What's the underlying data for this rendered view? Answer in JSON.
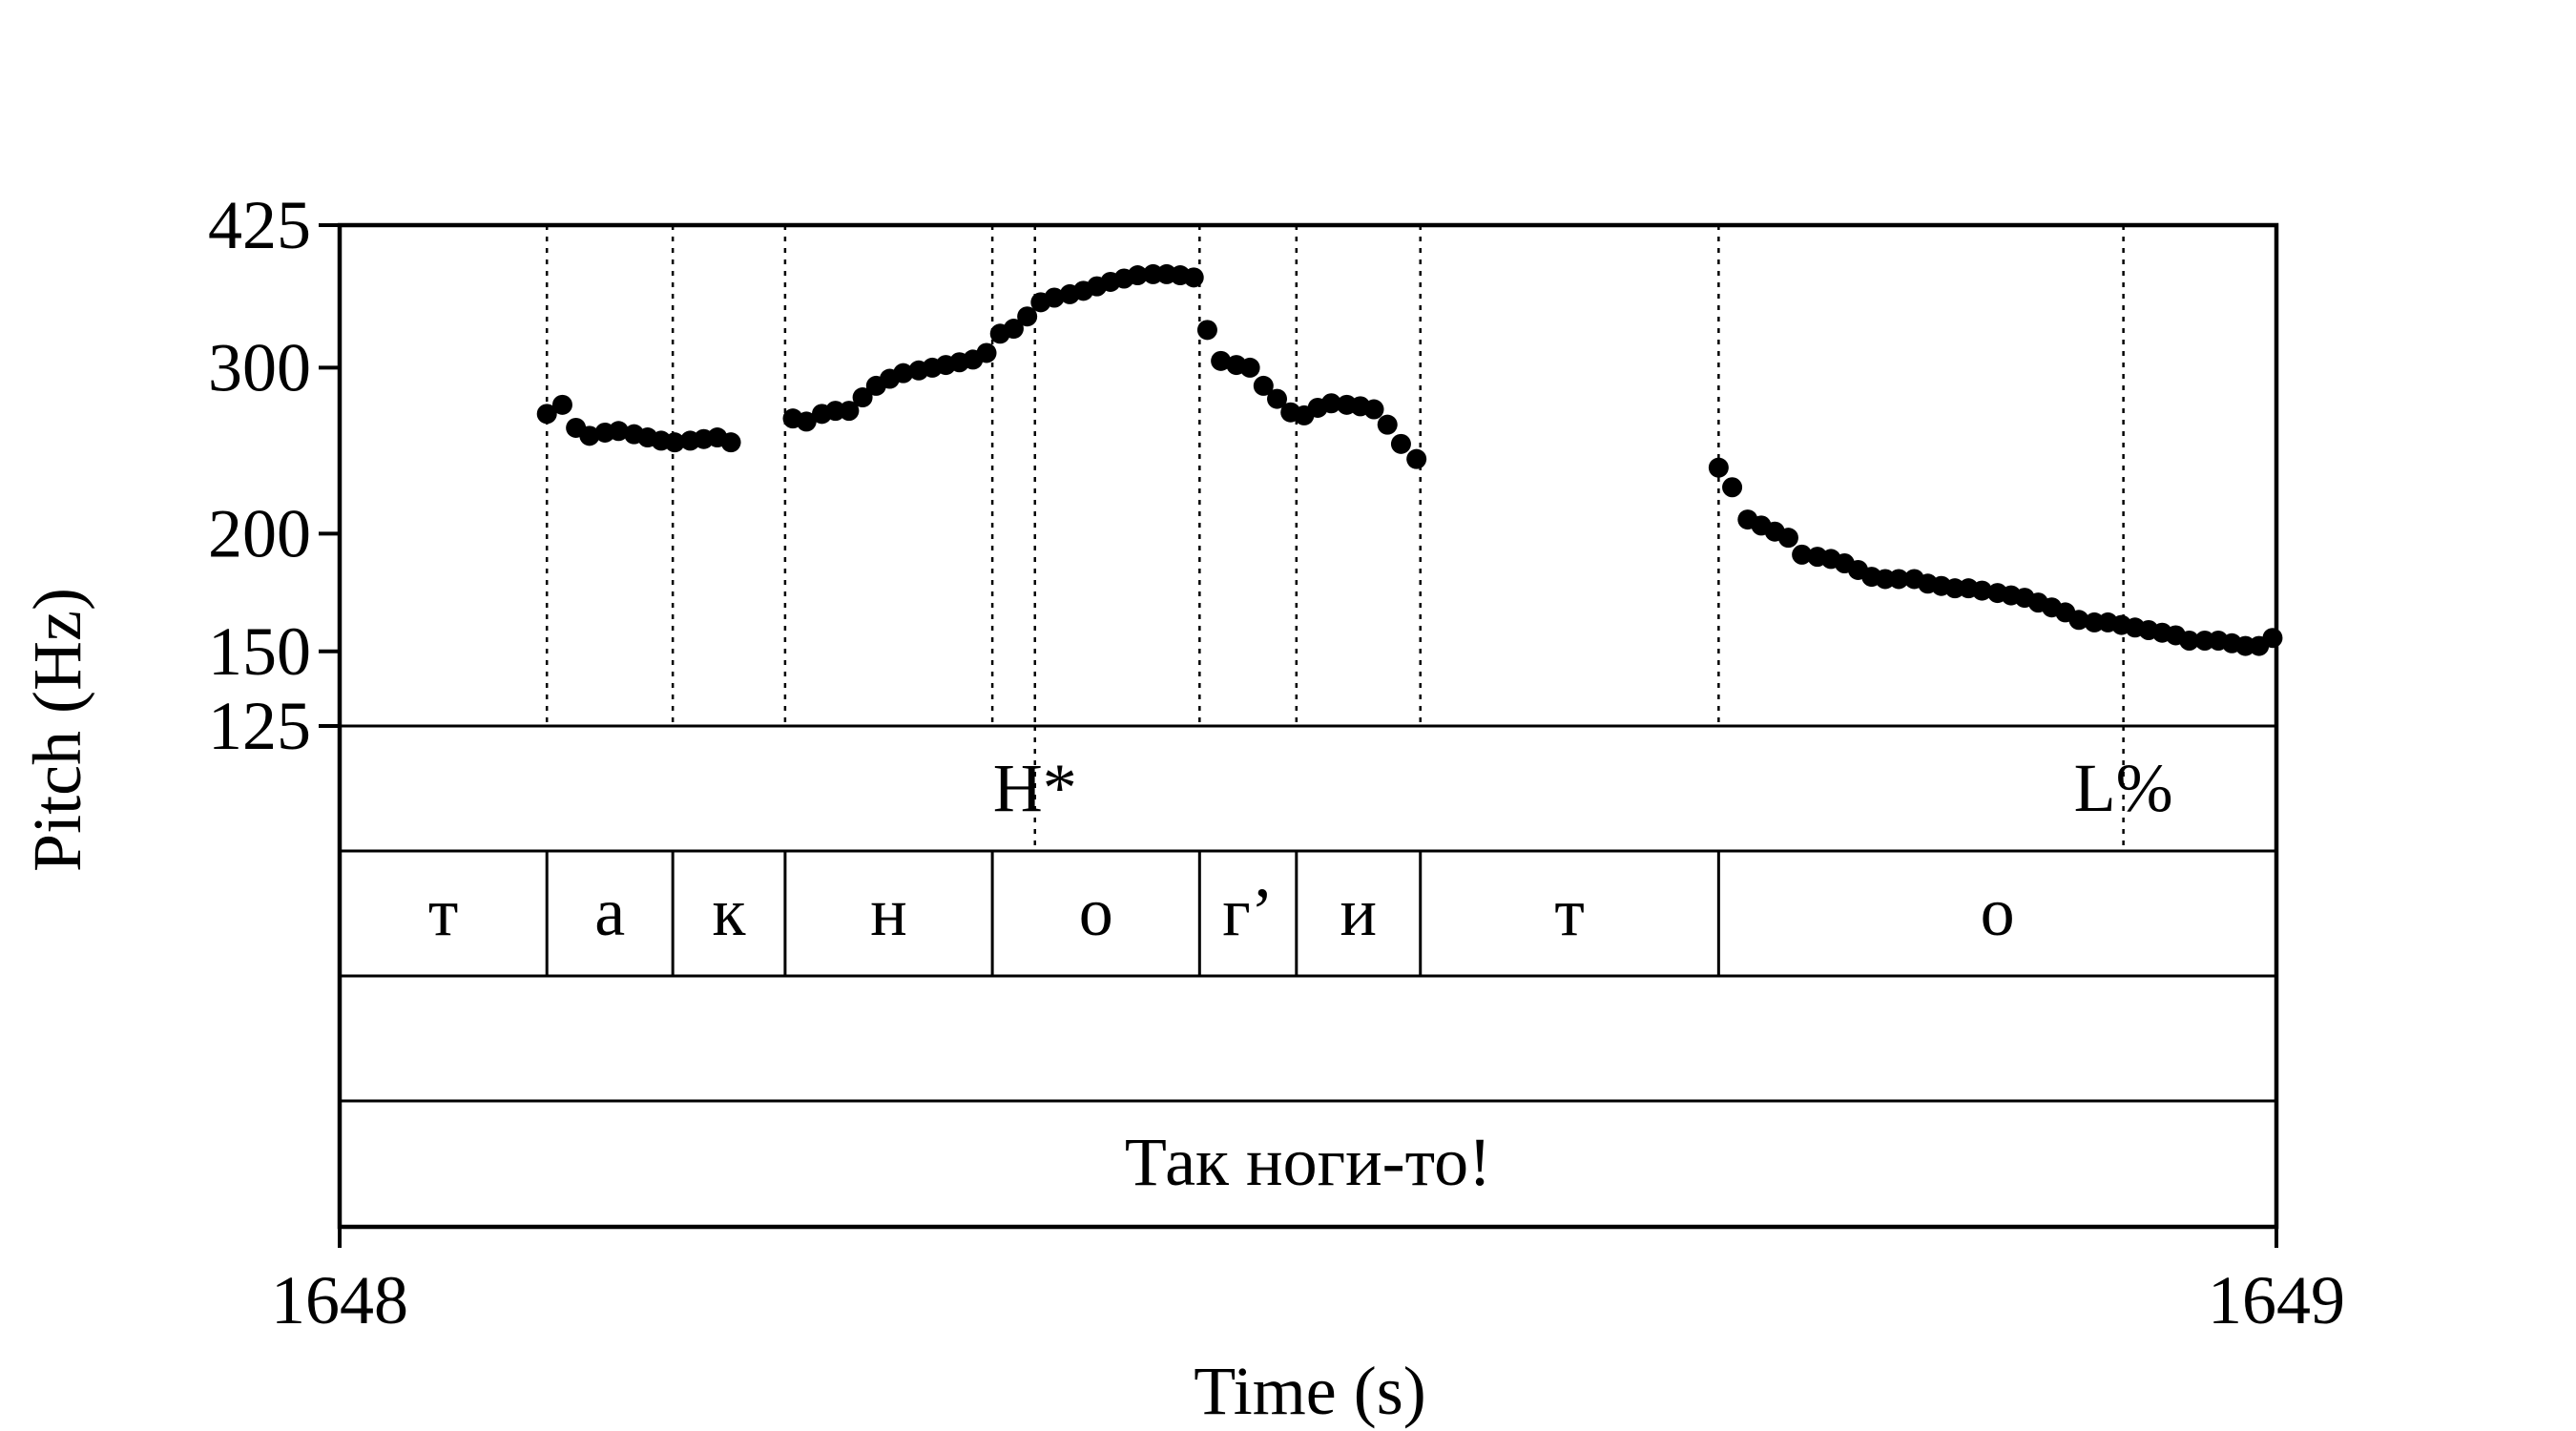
{
  "chart_data": {
    "type": "scatter",
    "title": "",
    "xlabel": "Time (s)",
    "ylabel": "Pitch (Hz)",
    "xlim": [
      1648,
      1649
    ],
    "ylim": [
      125,
      425
    ],
    "yscale": "log",
    "x_ticks": [
      "1648",
      "1649"
    ],
    "y_ticks": [
      {
        "value": 425,
        "label": "425"
      },
      {
        "value": 300,
        "label": "300"
      },
      {
        "value": 200,
        "label": "200"
      },
      {
        "value": 150,
        "label": "150"
      },
      {
        "value": 125,
        "label": "125"
      }
    ],
    "boundaries": [
      1648.107,
      1648.172,
      1648.23,
      1648.337,
      1648.359,
      1648.444,
      1648.494,
      1648.558,
      1648.712,
      1648.921
    ],
    "tones": [
      {
        "time": 1648.359,
        "label": "H*"
      },
      {
        "time": 1648.921,
        "label": "L%"
      }
    ],
    "segments": [
      {
        "start": 1648.0,
        "end": 1648.107,
        "label": "т"
      },
      {
        "start": 1648.107,
        "end": 1648.172,
        "label": "а"
      },
      {
        "start": 1648.172,
        "end": 1648.23,
        "label": "к"
      },
      {
        "start": 1648.23,
        "end": 1648.337,
        "label": "н"
      },
      {
        "start": 1648.337,
        "end": 1648.444,
        "label": "о"
      },
      {
        "start": 1648.444,
        "end": 1648.494,
        "label": "г’"
      },
      {
        "start": 1648.494,
        "end": 1648.558,
        "label": "и"
      },
      {
        "start": 1648.558,
        "end": 1648.712,
        "label": "т"
      },
      {
        "start": 1648.712,
        "end": 1649.0,
        "label": "о"
      }
    ],
    "phrase": "Так ноги-то!",
    "series": [
      {
        "points": [
          [
            1648.107,
            268
          ],
          [
            1648.115,
            274
          ],
          [
            1648.122,
            259
          ],
          [
            1648.129,
            254
          ],
          [
            1648.137,
            256
          ],
          [
            1648.144,
            257
          ],
          [
            1648.152,
            255
          ],
          [
            1648.159,
            253
          ],
          [
            1648.166,
            251
          ],
          [
            1648.173,
            250
          ],
          [
            1648.181,
            251
          ],
          [
            1648.188,
            252
          ],
          [
            1648.195,
            253
          ],
          [
            1648.202,
            250
          ],
          [
            1648.234,
            265
          ],
          [
            1648.241,
            263
          ],
          [
            1648.249,
            268
          ],
          [
            1648.256,
            270
          ],
          [
            1648.263,
            270
          ],
          [
            1648.27,
            279
          ],
          [
            1648.277,
            287
          ],
          [
            1648.284,
            292
          ],
          [
            1648.291,
            296
          ],
          [
            1648.299,
            298
          ],
          [
            1648.306,
            300
          ],
          [
            1648.313,
            302
          ],
          [
            1648.32,
            304
          ],
          [
            1648.327,
            306
          ],
          [
            1648.334,
            311
          ],
          [
            1648.341,
            326
          ],
          [
            1648.348,
            330
          ],
          [
            1648.355,
            340
          ],
          [
            1648.362,
            352
          ],
          [
            1648.369,
            356
          ],
          [
            1648.377,
            359
          ],
          [
            1648.384,
            362
          ],
          [
            1648.391,
            366
          ],
          [
            1648.398,
            370
          ],
          [
            1648.405,
            373
          ],
          [
            1648.412,
            376
          ],
          [
            1648.42,
            377
          ],
          [
            1648.427,
            377
          ],
          [
            1648.434,
            376
          ],
          [
            1648.441,
            374
          ],
          [
            1648.448,
            329
          ],
          [
            1648.455,
            305
          ],
          [
            1648.463,
            302
          ],
          [
            1648.47,
            300
          ],
          [
            1648.477,
            287
          ],
          [
            1648.484,
            278
          ],
          [
            1648.491,
            269
          ],
          [
            1648.498,
            267
          ],
          [
            1648.505,
            272
          ],
          [
            1648.512,
            275
          ],
          [
            1648.52,
            274
          ],
          [
            1648.527,
            273
          ],
          [
            1648.534,
            271
          ],
          [
            1648.541,
            261
          ],
          [
            1648.548,
            249
          ],
          [
            1648.556,
            240
          ],
          [
            1648.712,
            235
          ],
          [
            1648.719,
            224
          ],
          [
            1648.727,
            207
          ],
          [
            1648.734,
            204
          ],
          [
            1648.741,
            201
          ],
          [
            1648.748,
            198
          ],
          [
            1648.755,
            190
          ],
          [
            1648.763,
            189
          ],
          [
            1648.77,
            188
          ],
          [
            1648.777,
            186
          ],
          [
            1648.784,
            183
          ],
          [
            1648.791,
            180
          ],
          [
            1648.798,
            179
          ],
          [
            1648.805,
            179
          ],
          [
            1648.813,
            179
          ],
          [
            1648.82,
            177
          ],
          [
            1648.827,
            176
          ],
          [
            1648.834,
            175
          ],
          [
            1648.841,
            175
          ],
          [
            1648.848,
            174
          ],
          [
            1648.856,
            173
          ],
          [
            1648.863,
            172
          ],
          [
            1648.87,
            171
          ],
          [
            1648.877,
            169
          ],
          [
            1648.884,
            167
          ],
          [
            1648.891,
            165
          ],
          [
            1648.898,
            162
          ],
          [
            1648.906,
            161
          ],
          [
            1648.913,
            161
          ],
          [
            1648.92,
            160
          ],
          [
            1648.927,
            159
          ],
          [
            1648.934,
            158
          ],
          [
            1648.941,
            157
          ],
          [
            1648.948,
            156
          ],
          [
            1648.955,
            154
          ],
          [
            1648.963,
            154
          ],
          [
            1648.97,
            154
          ],
          [
            1648.977,
            153
          ],
          [
            1648.984,
            152
          ],
          [
            1648.991,
            152
          ],
          [
            1648.998,
            155
          ]
        ]
      }
    ]
  }
}
